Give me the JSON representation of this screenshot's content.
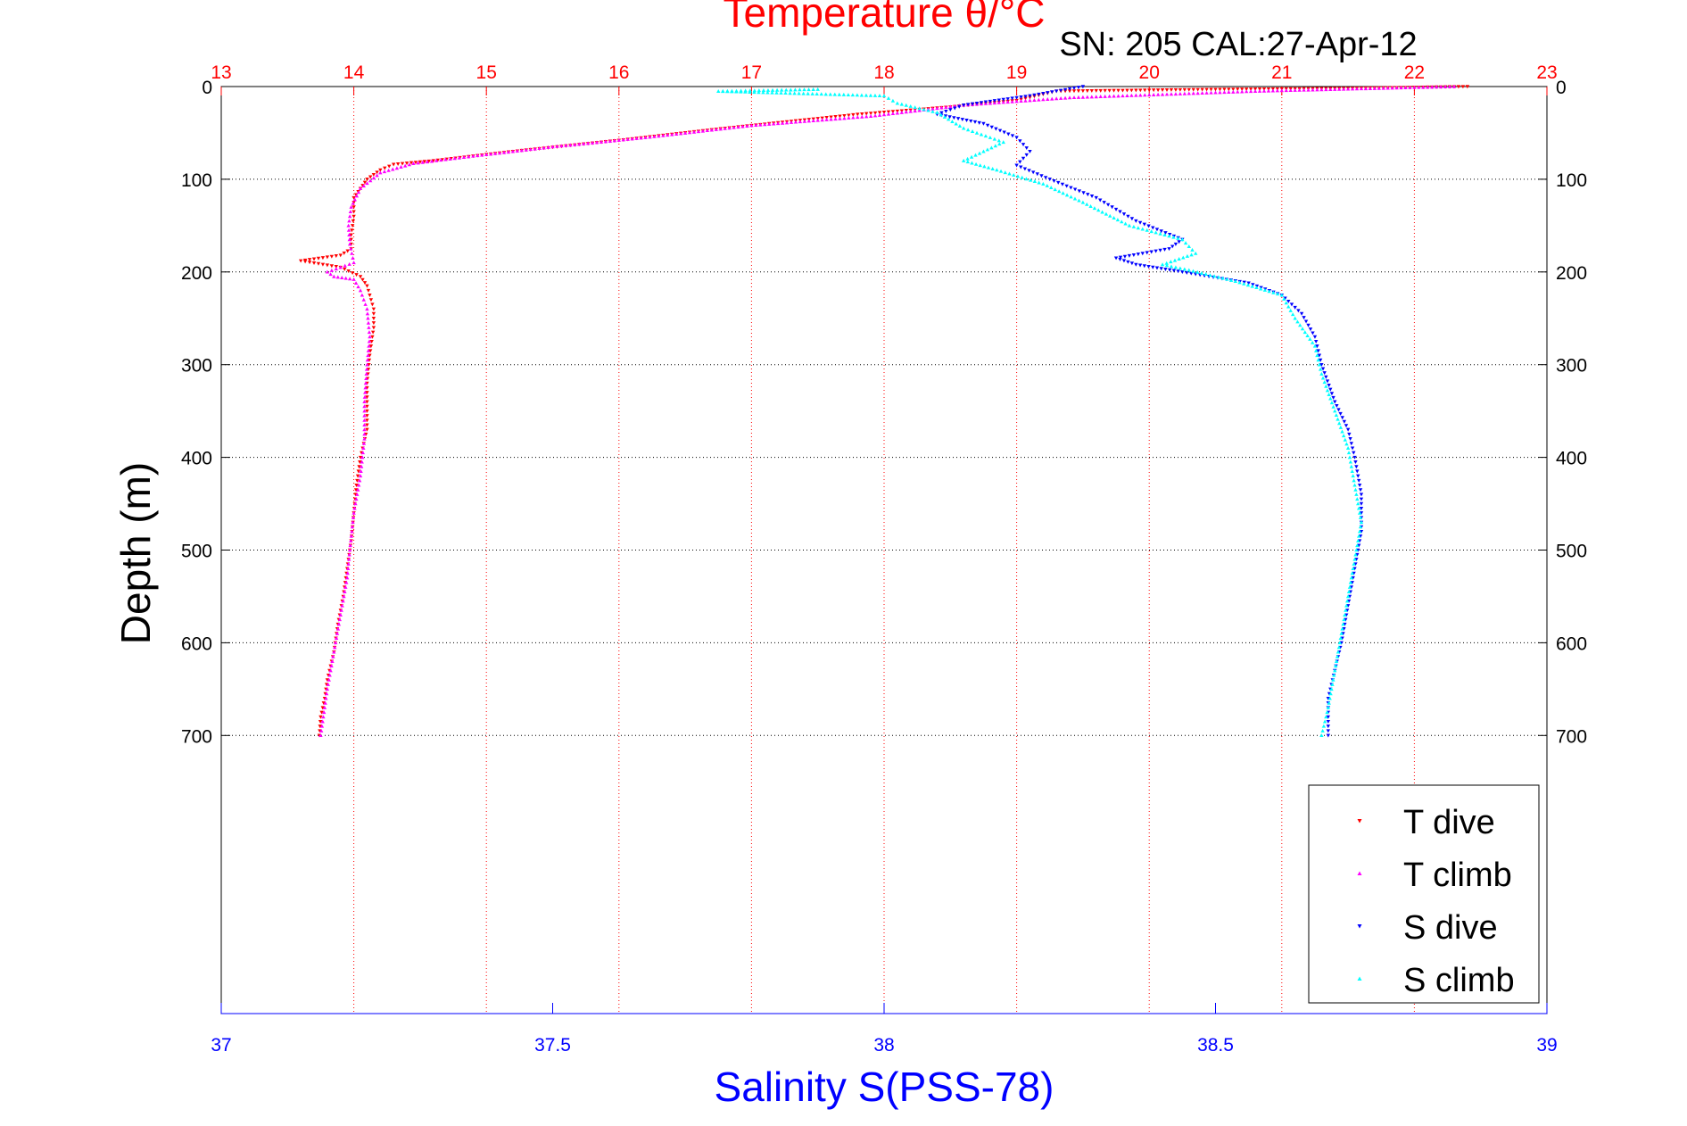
{
  "chart_data": {
    "type": "scatter",
    "title": "Temperature θ/°C",
    "subtitle": "SN: 205  CAL:27-Apr-12",
    "ylabel": "Depth (m)",
    "ylim": [
      0,
      1000
    ],
    "yticks": [
      0,
      100,
      200,
      300,
      400,
      500,
      600,
      700
    ],
    "y_reversed": true,
    "temperature_axis": {
      "label": "Temperature θ/°C",
      "range": [
        13,
        23
      ],
      "ticks": [
        13,
        14,
        15,
        16,
        17,
        18,
        19,
        20,
        21,
        22,
        23
      ],
      "position": "top",
      "color": "#ff0000"
    },
    "salinity_axis": {
      "label": "Salinity S(PSS-78)",
      "range": [
        37,
        39
      ],
      "ticks": [
        "37",
        "37.5",
        "38",
        "38.5",
        "39"
      ],
      "position": "bottom",
      "color": "#0000ff"
    },
    "grid": true,
    "legend_position": "bottom-right",
    "series": [
      {
        "name": "T dive",
        "axis": "temperature",
        "color": "#ff0000",
        "marker": "triangle-down",
        "points": [
          [
            22.4,
            0
          ],
          [
            21.5,
            2
          ],
          [
            20.5,
            3
          ],
          [
            19.3,
            5
          ],
          [
            19.0,
            15
          ],
          [
            18.5,
            22
          ],
          [
            17.8,
            30
          ],
          [
            16.8,
            45
          ],
          [
            16.0,
            58
          ],
          [
            15.2,
            70
          ],
          [
            14.6,
            80
          ],
          [
            14.3,
            84
          ],
          [
            14.2,
            90
          ],
          [
            14.1,
            100
          ],
          [
            14.05,
            110
          ],
          [
            14.0,
            120
          ],
          [
            14.0,
            140
          ],
          [
            13.98,
            160
          ],
          [
            13.98,
            175
          ],
          [
            13.9,
            182
          ],
          [
            13.6,
            188
          ],
          [
            13.9,
            195
          ],
          [
            14.05,
            205
          ],
          [
            14.1,
            215
          ],
          [
            14.15,
            240
          ],
          [
            14.15,
            260
          ],
          [
            14.12,
            290
          ],
          [
            14.1,
            320
          ],
          [
            14.1,
            350
          ],
          [
            14.1,
            370
          ],
          [
            14.05,
            400
          ],
          [
            14.02,
            430
          ],
          [
            14.0,
            460
          ],
          [
            13.98,
            490
          ],
          [
            13.95,
            520
          ],
          [
            13.92,
            550
          ],
          [
            13.88,
            580
          ],
          [
            13.85,
            610
          ],
          [
            13.8,
            640
          ],
          [
            13.78,
            660
          ],
          [
            13.75,
            680
          ],
          [
            13.74,
            700
          ]
        ]
      },
      {
        "name": "T climb",
        "axis": "temperature",
        "color": "#ff00ff",
        "marker": "triangle-up",
        "points": [
          [
            22.3,
            0
          ],
          [
            20.8,
            5
          ],
          [
            19.4,
            12
          ],
          [
            18.6,
            20
          ],
          [
            17.9,
            32
          ],
          [
            17.0,
            42
          ],
          [
            16.2,
            55
          ],
          [
            15.5,
            65
          ],
          [
            14.9,
            75
          ],
          [
            14.45,
            83
          ],
          [
            14.2,
            93
          ],
          [
            14.05,
            110
          ],
          [
            13.98,
            130
          ],
          [
            13.96,
            150
          ],
          [
            13.97,
            170
          ],
          [
            14.0,
            190
          ],
          [
            13.8,
            200
          ],
          [
            13.85,
            205
          ],
          [
            14.0,
            208
          ],
          [
            14.05,
            220
          ],
          [
            14.1,
            240
          ],
          [
            14.12,
            270
          ],
          [
            14.1,
            300
          ],
          [
            14.08,
            340
          ],
          [
            14.08,
            380
          ],
          [
            14.05,
            420
          ],
          [
            14.0,
            460
          ],
          [
            13.97,
            500
          ],
          [
            13.95,
            530
          ],
          [
            13.9,
            570
          ],
          [
            13.85,
            610
          ],
          [
            13.8,
            650
          ],
          [
            13.77,
            680
          ],
          [
            13.75,
            700
          ]
        ]
      },
      {
        "name": "S dive",
        "axis": "salinity",
        "color": "#0000ff",
        "marker": "triangle-down",
        "points": [
          [
            38.3,
            0
          ],
          [
            38.22,
            10
          ],
          [
            38.12,
            20
          ],
          [
            38.08,
            30
          ],
          [
            38.15,
            40
          ],
          [
            38.2,
            55
          ],
          [
            38.22,
            70
          ],
          [
            38.2,
            85
          ],
          [
            38.25,
            100
          ],
          [
            38.32,
            120
          ],
          [
            38.38,
            145
          ],
          [
            38.45,
            165
          ],
          [
            38.43,
            175
          ],
          [
            38.35,
            185
          ],
          [
            38.38,
            192
          ],
          [
            38.45,
            200
          ],
          [
            38.55,
            212
          ],
          [
            38.6,
            225
          ],
          [
            38.63,
            245
          ],
          [
            38.65,
            270
          ],
          [
            38.66,
            300
          ],
          [
            38.68,
            340
          ],
          [
            38.7,
            370
          ],
          [
            38.71,
            400
          ],
          [
            38.72,
            440
          ],
          [
            38.72,
            480
          ],
          [
            38.71,
            520
          ],
          [
            38.7,
            560
          ],
          [
            38.69,
            600
          ],
          [
            38.68,
            630
          ],
          [
            38.67,
            660
          ],
          [
            38.67,
            700
          ]
        ]
      },
      {
        "name": "S climb",
        "axis": "salinity",
        "color": "#00ffff",
        "marker": "triangle-up",
        "points": [
          [
            37.75,
            5
          ],
          [
            37.9,
            3
          ],
          [
            38.0,
            10
          ],
          [
            38.02,
            18
          ],
          [
            38.08,
            28
          ],
          [
            38.12,
            45
          ],
          [
            38.18,
            60
          ],
          [
            38.12,
            80
          ],
          [
            38.17,
            90
          ],
          [
            38.24,
            105
          ],
          [
            38.3,
            125
          ],
          [
            38.37,
            150
          ],
          [
            38.45,
            165
          ],
          [
            38.47,
            180
          ],
          [
            38.42,
            192
          ],
          [
            38.46,
            198
          ],
          [
            38.53,
            210
          ],
          [
            38.6,
            225
          ],
          [
            38.62,
            250
          ],
          [
            38.65,
            280
          ],
          [
            38.66,
            310
          ],
          [
            38.68,
            350
          ],
          [
            38.7,
            390
          ],
          [
            38.71,
            430
          ],
          [
            38.72,
            470
          ],
          [
            38.71,
            510
          ],
          [
            38.7,
            550
          ],
          [
            38.69,
            590
          ],
          [
            38.68,
            630
          ],
          [
            38.67,
            670
          ],
          [
            38.66,
            700
          ]
        ]
      }
    ]
  }
}
